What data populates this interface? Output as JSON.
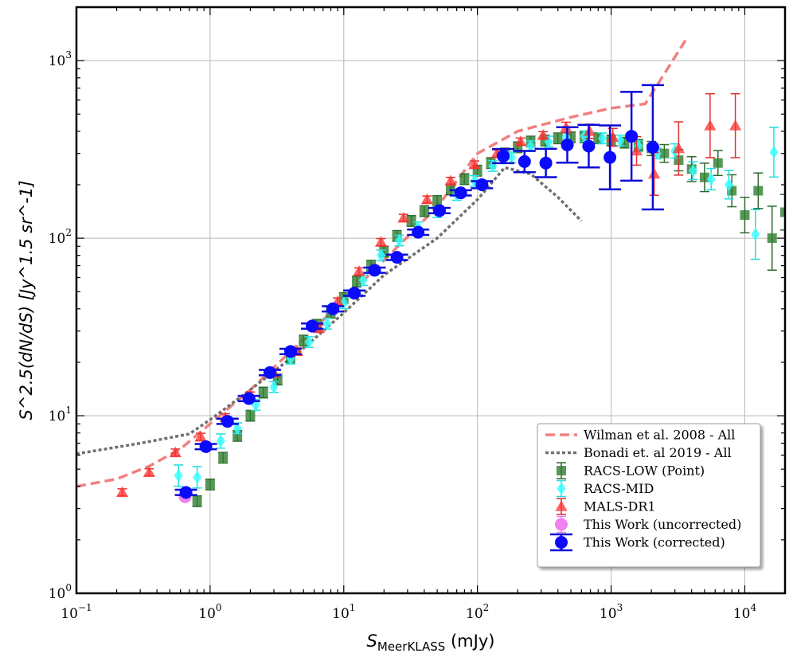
{
  "chart_data": {
    "type": "scatter",
    "x_scale": "log",
    "y_scale": "log",
    "xlim": [
      0.1,
      20000
    ],
    "ylim": [
      1,
      2000
    ],
    "grid": true,
    "legend_position": "lower-right",
    "xlabel": {
      "main": "S",
      "sub": "MeerKLASS",
      "unit": "(mJy)"
    },
    "ylabel": {
      "text": "S^2.5(dN/dS) [Jy^1.5 sr^-1]"
    },
    "x_ticks": [
      {
        "value": 0.1,
        "base": "10",
        "exp": "−1"
      },
      {
        "value": 1,
        "base": "10",
        "exp": "0"
      },
      {
        "value": 10,
        "base": "10",
        "exp": "1"
      },
      {
        "value": 100,
        "base": "10",
        "exp": "2"
      },
      {
        "value": 1000,
        "base": "10",
        "exp": "3"
      },
      {
        "value": 10000,
        "base": "10",
        "exp": "4"
      }
    ],
    "y_ticks": [
      {
        "value": 1,
        "base": "10",
        "exp": "0"
      },
      {
        "value": 10,
        "base": "10",
        "exp": "1"
      },
      {
        "value": 100,
        "base": "10",
        "exp": "2"
      },
      {
        "value": 1000,
        "base": "10",
        "exp": "3"
      }
    ],
    "series": [
      {
        "name": "Wilman et al. 2008 - All",
        "kind": "line",
        "style": "dashed",
        "color": "#f08080",
        "x": [
          0.1,
          0.2,
          0.35,
          0.6,
          1.0,
          2,
          5,
          10,
          20,
          50,
          100,
          200,
          500,
          1000,
          1800,
          3600
        ],
        "y": [
          4.0,
          4.4,
          5.2,
          6.5,
          9.0,
          14,
          27,
          45,
          75,
          150,
          300,
          400,
          480,
          540,
          570,
          1300
        ]
      },
      {
        "name": "Bonadi et. al 2019 - All",
        "kind": "line",
        "style": "dotted",
        "color": "#707070",
        "x": [
          0.1,
          0.3,
          0.7,
          1.0,
          2,
          5,
          10,
          20,
          50,
          100,
          160,
          250,
          400,
          600
        ],
        "y": [
          6.1,
          7.0,
          7.9,
          9.5,
          14,
          24,
          38,
          62,
          100,
          165,
          250,
          230,
          170,
          125
        ]
      },
      {
        "name": "RACS-LOW (Point)",
        "kind": "points",
        "marker": "square",
        "color": "#2e7d2e",
        "errcolor": "#2e6b2e",
        "x": [
          0.8,
          1.0,
          1.25,
          1.6,
          2.0,
          2.5,
          3.2,
          4.0,
          5.0,
          6.3,
          8.0,
          10,
          12.5,
          16,
          20,
          25,
          32,
          40,
          50,
          63,
          80,
          100,
          126,
          160,
          200,
          250,
          320,
          400,
          500,
          630,
          800,
          1000,
          1260,
          1600,
          2000,
          2500,
          3200,
          4000,
          5000,
          6300,
          8000,
          10000,
          12600,
          16000,
          20000
        ],
        "y": [
          3.3,
          4.1,
          5.8,
          7.7,
          10,
          13.5,
          16,
          21,
          26.5,
          32.5,
          38,
          46,
          57,
          70,
          84,
          103,
          125,
          142,
          162,
          188,
          215,
          240,
          265,
          300,
          325,
          350,
          355,
          365,
          370,
          370,
          365,
          355,
          345,
          335,
          320,
          300,
          275,
          245,
          220,
          265,
          185,
          135,
          185,
          100,
          140
        ],
        "err": [
          0.03,
          0.03,
          0.03,
          0.03,
          0.03,
          0.03,
          0.03,
          0.03,
          0.03,
          0.03,
          0.03,
          0.03,
          0.03,
          0.03,
          0.03,
          0.03,
          0.03,
          0.03,
          0.03,
          0.03,
          0.03,
          0.03,
          0.03,
          0.03,
          0.03,
          0.03,
          0.03,
          0.03,
          0.03,
          0.03,
          0.03,
          0.03,
          0.03,
          0.03,
          0.04,
          0.05,
          0.06,
          0.07,
          0.08,
          0.07,
          0.09,
          0.1,
          0.1,
          0.18,
          0.1
        ]
      },
      {
        "name": "RACS-MID",
        "kind": "points",
        "marker": "diamond",
        "color": "#33ffff",
        "errcolor": "#22dddd",
        "x": [
          0.58,
          0.8,
          1.2,
          1.6,
          2.2,
          3.0,
          4.0,
          5.5,
          7.5,
          10,
          14,
          19,
          26,
          36,
          50,
          70,
          95,
          130,
          180,
          250,
          340,
          460,
          630,
          860,
          1170,
          1600,
          2200,
          3000,
          4100,
          5600,
          7600,
          12000,
          16500
        ],
        "y": [
          4.6,
          4.5,
          7.2,
          8.5,
          11.5,
          14.5,
          21,
          26,
          33,
          43,
          58,
          80,
          97,
          115,
          140,
          175,
          210,
          255,
          285,
          330,
          350,
          370,
          375,
          365,
          355,
          330,
          300,
          310,
          240,
          215,
          200,
          105,
          305
        ],
        "err": [
          0.06,
          0.06,
          0.04,
          0.03,
          0.03,
          0.03,
          0.03,
          0.03,
          0.03,
          0.03,
          0.03,
          0.03,
          0.03,
          0.03,
          0.03,
          0.03,
          0.03,
          0.03,
          0.03,
          0.03,
          0.03,
          0.03,
          0.03,
          0.03,
          0.03,
          0.03,
          0.03,
          0.04,
          0.05,
          0.06,
          0.08,
          0.14,
          0.14
        ]
      },
      {
        "name": "MALS-DR1",
        "kind": "points",
        "marker": "triangle",
        "color": "#ff3030",
        "errcolor": "#e03030",
        "x": [
          0.22,
          0.35,
          0.55,
          0.85,
          1.3,
          2.0,
          3.0,
          4.5,
          6.5,
          9.0,
          13,
          19,
          28,
          42,
          63,
          95,
          140,
          210,
          310,
          460,
          690,
          1030,
          1550,
          2100,
          3200,
          5500,
          8500
        ],
        "y": [
          3.7,
          4.8,
          6.2,
          7.6,
          9.8,
          13,
          17.5,
          23,
          31,
          44,
          65,
          95,
          130,
          165,
          210,
          260,
          300,
          350,
          380,
          420,
          400,
          370,
          310,
          230,
          320,
          430,
          430
        ],
        "err": [
          0.02,
          0.02,
          0.02,
          0.02,
          0.02,
          0.02,
          0.02,
          0.02,
          0.02,
          0.02,
          0.02,
          0.02,
          0.02,
          0.02,
          0.02,
          0.02,
          0.02,
          0.02,
          0.02,
          0.03,
          0.04,
          0.05,
          0.08,
          0.12,
          0.15,
          0.18,
          0.18
        ]
      },
      {
        "name": "This Work (uncorrected)",
        "kind": "points",
        "marker": "circle",
        "color": "#ee82ee",
        "errcolor": "#ee82ee",
        "x": [
          0.65
        ],
        "y": [
          3.5
        ],
        "err": [
          0.02
        ]
      },
      {
        "name": "This Work (corrected)",
        "kind": "points",
        "marker": "circle",
        "color": "#0a0aff",
        "errcolor": "#0a0ad8",
        "x": [
          0.66,
          0.93,
          1.35,
          1.95,
          2.8,
          4.0,
          5.8,
          8.3,
          12,
          17,
          25,
          36,
          52,
          75,
          108,
          156,
          225,
          325,
          470,
          680,
          980,
          1420,
          2050
        ],
        "y": [
          3.7,
          6.7,
          9.3,
          12.5,
          17.5,
          23,
          32,
          40,
          49,
          66,
          78,
          108,
          143,
          180,
          200,
          290,
          270,
          265,
          335,
          330,
          285,
          375,
          325
        ],
        "err": [
          0.015,
          0.015,
          0.015,
          0.015,
          0.015,
          0.015,
          0.015,
          0.015,
          0.015,
          0.015,
          0.015,
          0.015,
          0.015,
          0.015,
          0.02,
          0.04,
          0.06,
          0.08,
          0.1,
          0.12,
          0.18,
          0.25,
          0.35
        ]
      }
    ]
  }
}
